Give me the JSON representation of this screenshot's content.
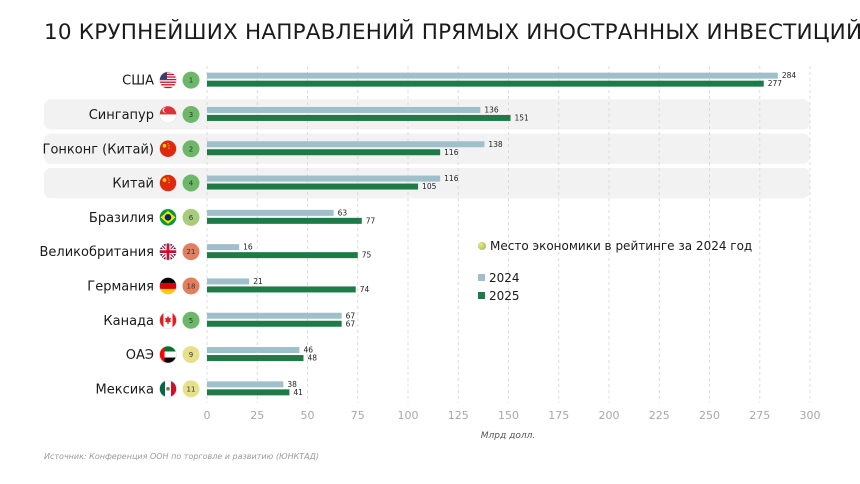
{
  "title": "10 КРУПНЕЙШИХ НАПРАВЛЕНИЙ ПРЯМЫХ ИНОСТРАННЫХ ИНВЕСТИЦИЙ",
  "source": "Источник: Конференция ООН по торговле и развитию (ЮНКТАД)",
  "legend": {
    "rank_label": "Место экономики в рейтинге за 2024 год",
    "series_2024": "2024",
    "series_2025": "2025"
  },
  "colors": {
    "bar_2024": "#9fbfcb",
    "bar_2025": "#1e7a47",
    "row_highlight": "#f2f2f2",
    "rank_green": "#6cb868",
    "rank_lightgreen": "#a7cc7a",
    "rank_yellow": "#e6e08a",
    "rank_orange": "#e37f5e"
  },
  "chart_data": {
    "type": "bar",
    "orientation": "horizontal",
    "title": "10 КРУПНЕЙШИХ НАПРАВЛЕНИЙ ПРЯМЫХ ИНОСТРАННЫХ ИНВЕСТИЦИЙ",
    "xlabel": "Млрд долл.",
    "ylabel": "",
    "xlim": [
      0,
      300
    ],
    "ticks": [
      0,
      25,
      50,
      75,
      100,
      125,
      150,
      175,
      200,
      225,
      250,
      275,
      300
    ],
    "grid": "vertical-dashed",
    "categories": [
      "США",
      "Сингапур",
      "Гонконг (Китай)",
      "Китай",
      "Бразилия",
      "Великобритания",
      "Германия",
      "Канада",
      "ОАЭ",
      "Мексика"
    ],
    "flags": [
      "us-flag-icon",
      "singapore-flag-icon",
      "china-flag-icon",
      "china-flag-icon",
      "brazil-flag-icon",
      "uk-flag-icon",
      "germany-flag-icon",
      "canada-flag-icon",
      "uae-flag-icon",
      "mexico-flag-icon"
    ],
    "ranks": [
      1,
      3,
      2,
      4,
      6,
      21,
      18,
      5,
      9,
      11
    ],
    "rank_colors": [
      "#6cb868",
      "#6cb868",
      "#6cb868",
      "#6cb868",
      "#a7cc7a",
      "#e37f5e",
      "#e37f5e",
      "#6cb868",
      "#e6e08a",
      "#e6e08a"
    ],
    "highlighted_rows": [
      1,
      2,
      3
    ],
    "series": [
      {
        "name": "2024",
        "values": [
          284,
          136,
          138,
          116,
          63,
          16,
          21,
          67,
          46,
          38
        ]
      },
      {
        "name": "2025",
        "values": [
          277,
          151,
          116,
          105,
          77,
          75,
          74,
          67,
          48,
          41
        ]
      }
    ]
  }
}
